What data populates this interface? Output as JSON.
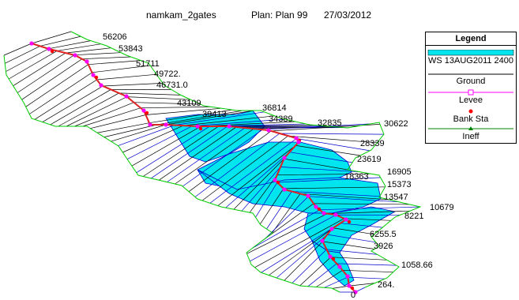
{
  "header": {
    "project": "namkam_2gates",
    "plan": "Plan: Plan 99",
    "date": "27/03/2012"
  },
  "legend": {
    "title": "Legend",
    "items": [
      {
        "label": "WS 13AUG2011 2400",
        "color": "#00e5ee"
      },
      {
        "label": "Ground",
        "color": "#000000"
      },
      {
        "label": "Levee",
        "color": "#ff00ff"
      },
      {
        "label": "Bank Sta",
        "color": "#ff0000"
      },
      {
        "label": "Ineff",
        "color": "#008000"
      }
    ]
  },
  "stations": [
    "56206",
    "53843",
    "51711",
    "49722.",
    "46731.0",
    "43109",
    "39413",
    "36814",
    "34389",
    "32835",
    "30622",
    "28339",
    "23619",
    "18363",
    "16905",
    "15373",
    "13547",
    "10679",
    "8221",
    "6255.5",
    "3926",
    "1058.66",
    "264.",
    "0"
  ],
  "colors": {
    "water": "#00e5ee",
    "ground": "#000000",
    "levee": "#ff00ff",
    "bank": "#ff0000",
    "ineff": "#008000",
    "channel": "#0000cc",
    "overbank": "#00cc00",
    "thalweg": "#dd2222"
  }
}
